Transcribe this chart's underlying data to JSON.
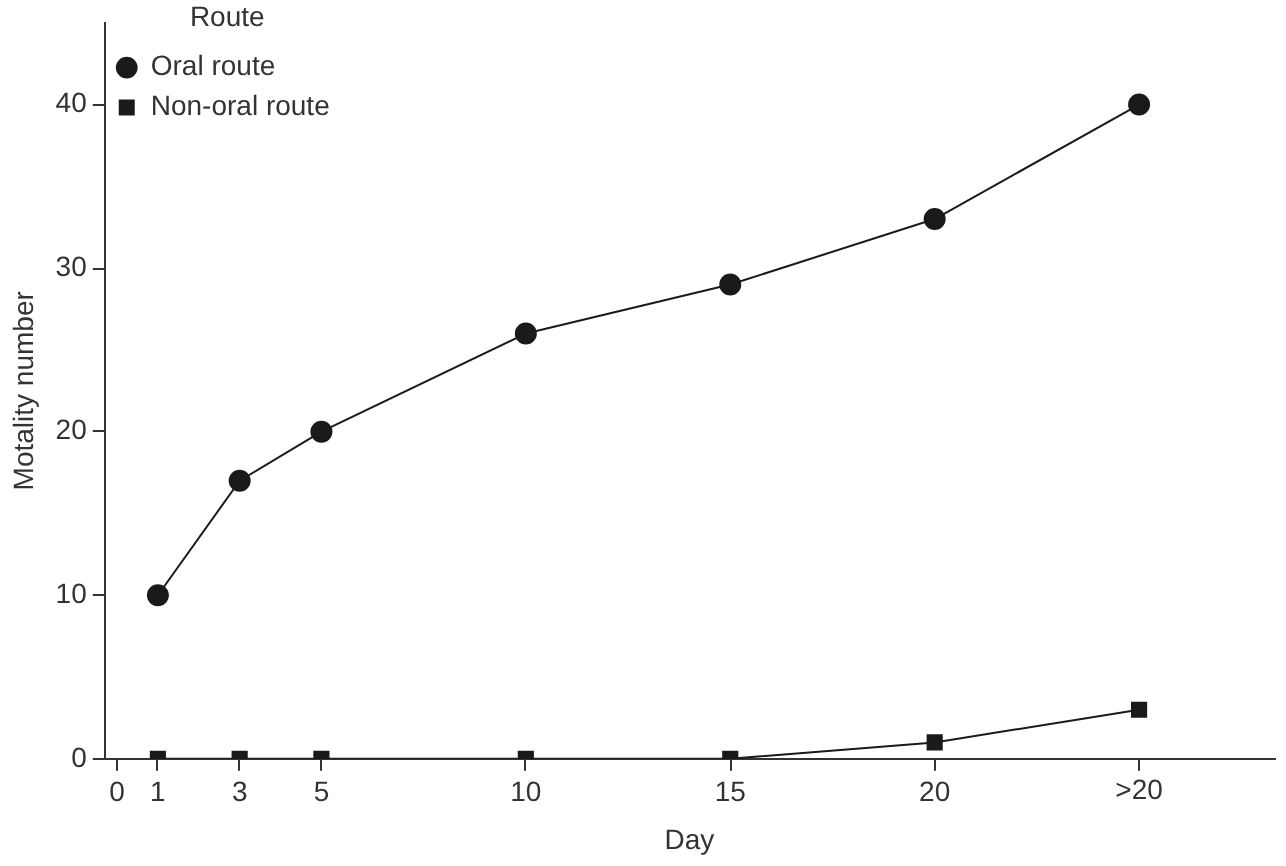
{
  "chart_data": {
    "type": "line",
    "xlabel": "Day",
    "ylabel": "Motality number",
    "legend_title": "Route",
    "legend": "top left",
    "grid": false,
    "x": [
      1,
      3,
      5,
      10,
      15,
      20,
      25
    ],
    "xlim": [
      -0.3,
      28.3
    ],
    "xticks": [
      0,
      1,
      3,
      5,
      10,
      15,
      20,
      {
        "value": 25,
        "label": ">20"
      }
    ],
    "ylim": [
      0,
      45
    ],
    "yticks": [
      0,
      10,
      20,
      30,
      40
    ],
    "series": [
      {
        "name": "Oral route",
        "color": "#1a1a1a",
        "marker": "circle",
        "values": [
          10,
          17,
          20,
          26,
          29,
          33,
          40
        ]
      },
      {
        "name": "Non-oral route",
        "color": "#1a1a1a",
        "marker": "square",
        "values": [
          0,
          0,
          0,
          0,
          0,
          1,
          3
        ]
      }
    ]
  }
}
